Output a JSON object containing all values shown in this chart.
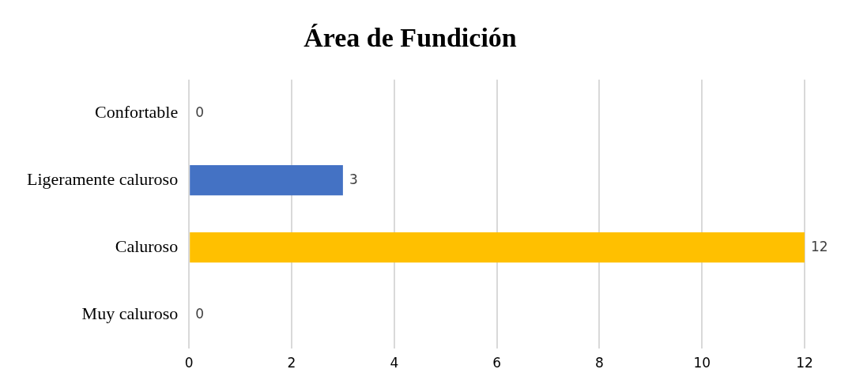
{
  "chart_data": {
    "type": "bar",
    "orientation": "horizontal",
    "title": "Área de Fundición",
    "categories": [
      "Confortable",
      "Ligeramente caluroso",
      "Caluroso",
      "Muy caluroso"
    ],
    "values": [
      0,
      3,
      12,
      0
    ],
    "colors": [
      "#c00000",
      "#4472c4",
      "#ffc000",
      "#548235"
    ],
    "xlim": [
      0,
      12
    ],
    "xticks": [
      0,
      2,
      4,
      6,
      8,
      10,
      12
    ],
    "grid": "x",
    "data_labels": true,
    "legend": false
  }
}
